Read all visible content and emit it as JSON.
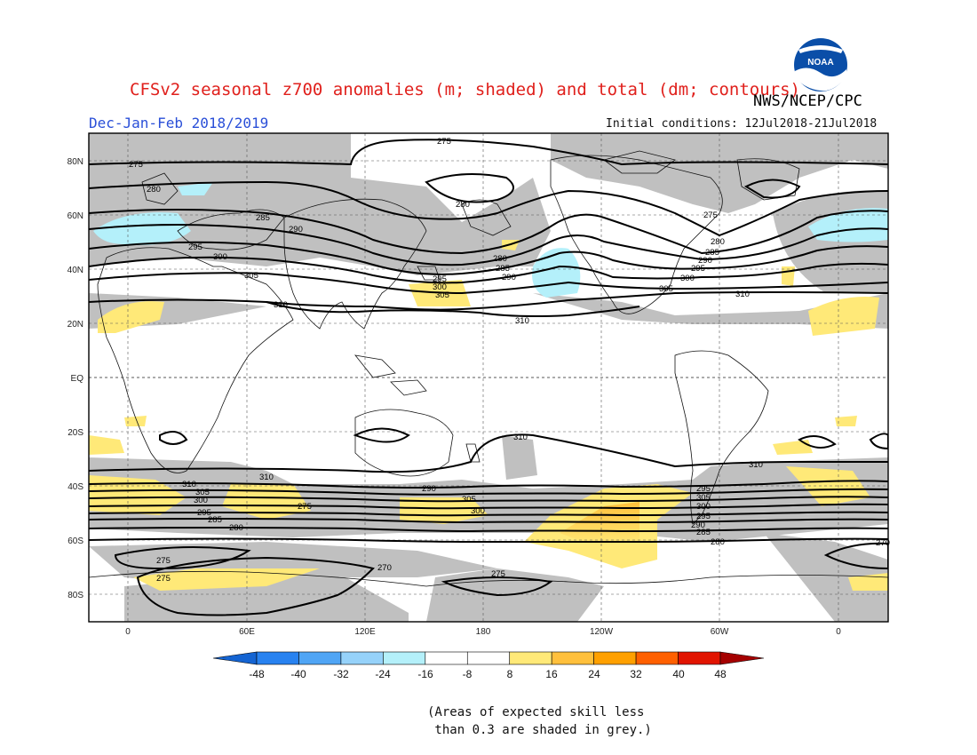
{
  "header": {
    "title": "CFSv2 seasonal z700 anomalies (m; shaded) and total (dm; contours)",
    "season": "Dec-Jan-Feb 2018/2019",
    "agency": "NWS/NCEP/CPC",
    "initial_conditions": "Initial conditions: 12Jul2018-21Jul2018",
    "logo_text": "NOAA"
  },
  "axes": {
    "lat_labels": [
      "80N",
      "60N",
      "40N",
      "20N",
      "EQ",
      "20S",
      "40S",
      "60S",
      "80S"
    ],
    "lon_labels": [
      "0",
      "60E",
      "120E",
      "180",
      "120W",
      "60W",
      "0"
    ]
  },
  "contour_labels": {
    "north": [
      "275",
      "275",
      "280",
      "285",
      "290",
      "295",
      "300",
      "305",
      "310",
      "280",
      "280",
      "285",
      "290",
      "295",
      "300",
      "305",
      "310",
      "275",
      "280",
      "285",
      "290",
      "295",
      "300",
      "305",
      "310",
      "310"
    ],
    "south": [
      "310",
      "310",
      "310",
      "305",
      "300",
      "295",
      "285",
      "280",
      "275",
      "290",
      "305",
      "300",
      "295",
      "305",
      "300",
      "295",
      "290",
      "285",
      "280",
      "275",
      "270",
      "275",
      "275",
      "270",
      "27"
    ]
  },
  "colorbar": {
    "ticks": [
      "-48",
      "-40",
      "-32",
      "-24",
      "-16",
      "-8",
      "8",
      "16",
      "24",
      "32",
      "40",
      "48"
    ],
    "colors": [
      "#1464d2",
      "#2882f0",
      "#50a5f5",
      "#96d2fa",
      "#b4f0fa",
      "#ffffff",
      "#ffffff",
      "#ffe978",
      "#ffc03c",
      "#ffa000",
      "#ff6000",
      "#e11400",
      "#a50000"
    ]
  },
  "note": "(Areas of expected skill less\n than 0.3 are shaded in grey.)"
}
